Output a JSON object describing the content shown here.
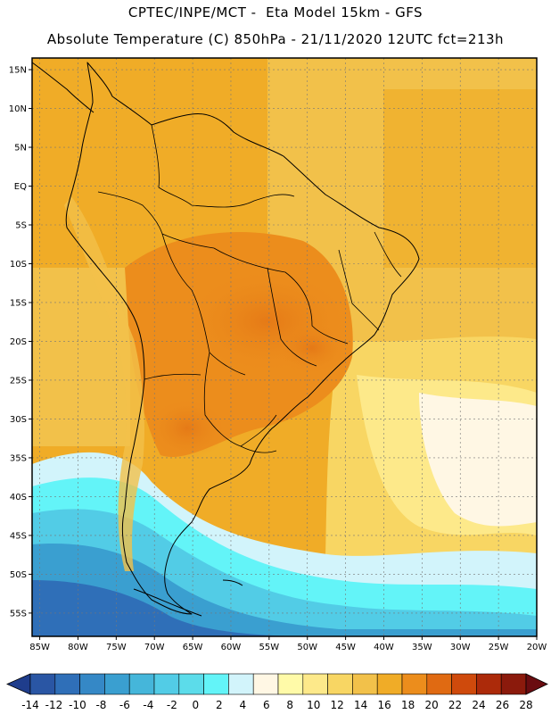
{
  "title": {
    "line1": "CPTEC/INPE/MCT -  Eta Model 15km - GFS",
    "line2": "Absolute Temperature (C) 850hPa - 21/11/2020 12UTC fct=213h"
  },
  "map": {
    "lat_labels": [
      "15N",
      "10N",
      "5N",
      "EQ",
      "5S",
      "10S",
      "15S",
      "20S",
      "25S",
      "30S",
      "35S",
      "40S",
      "45S",
      "50S",
      "55S"
    ],
    "lon_labels": [
      "85W",
      "80W",
      "75W",
      "70W",
      "65W",
      "60W",
      "55W",
      "50W",
      "45W",
      "40W",
      "35W",
      "30W",
      "25W",
      "20W"
    ],
    "lat_range": [
      -58,
      16.5
    ],
    "lon_range": [
      -86,
      -20
    ]
  },
  "colorbar": {
    "labels": [
      "-14",
      "-12",
      "-10",
      "-8",
      "-6",
      "-4",
      "-2",
      "0",
      "2",
      "4",
      "6",
      "8",
      "10",
      "12",
      "14",
      "16",
      "18",
      "20",
      "22",
      "24",
      "26",
      "28"
    ],
    "colors": [
      "#1f3d8c",
      "#2a56a4",
      "#2f6fb8",
      "#3588c6",
      "#3a9fd0",
      "#45b6da",
      "#52cce6",
      "#5cdcea",
      "#63f4f8",
      "#d2f4fb",
      "#fff7e4",
      "#fffaa8",
      "#fde98a",
      "#f8d663",
      "#f2c14a",
      "#f0ac27",
      "#ec8d1c",
      "#e06a12",
      "#cf4a0c",
      "#ac2a0a",
      "#8b1a0c",
      "#6a0c10"
    ]
  }
}
